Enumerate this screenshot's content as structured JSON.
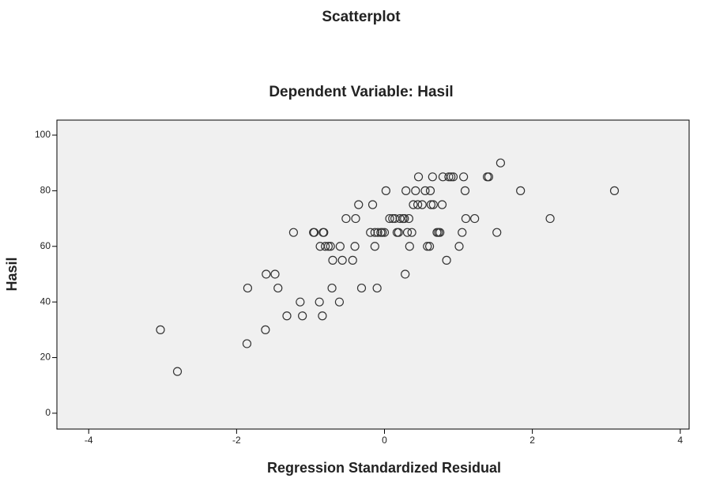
{
  "chart_data": {
    "type": "scatter",
    "title": "Scatterplot",
    "subtitle": "Dependent Variable: Hasil",
    "x_label": "Regression Standardized Residual",
    "y_label": "Hasil",
    "color": "#333333",
    "x": [
      -3.03,
      -2.8,
      -1.85,
      -1.86,
      -1.61,
      -1.6,
      -1.48,
      -1.44,
      -1.32,
      -1.23,
      -1.14,
      -1.11,
      -0.96,
      -0.95,
      -0.83,
      -0.82,
      -0.88,
      -0.87,
      -0.84,
      -0.8,
      -0.76,
      -0.73,
      -0.71,
      -0.7,
      -0.61,
      -0.6,
      -0.57,
      -0.52,
      -0.43,
      -0.4,
      -0.39,
      -0.35,
      -0.31,
      -0.19,
      -0.16,
      -0.13,
      -0.13,
      -0.1,
      -0.09,
      -0.05,
      -0.03,
      0.0,
      0.02,
      0.07,
      0.11,
      0.14,
      0.17,
      0.19,
      0.21,
      0.25,
      0.27,
      0.28,
      0.29,
      0.31,
      0.33,
      0.34,
      0.37,
      0.39,
      0.42,
      0.45,
      0.46,
      0.51,
      0.55,
      0.58,
      0.61,
      0.62,
      0.63,
      0.65,
      0.66,
      0.71,
      0.73,
      0.75,
      0.78,
      0.79,
      0.84,
      0.87,
      0.9,
      0.93,
      1.01,
      1.05,
      1.07,
      1.09,
      1.1,
      1.22,
      1.39,
      1.41,
      1.52,
      1.57,
      1.84,
      2.24,
      3.11
    ],
    "y": [
      30,
      15,
      45,
      25,
      30,
      50,
      50,
      45,
      35,
      65,
      40,
      35,
      65,
      65,
      65,
      65,
      40,
      60,
      35,
      60,
      60,
      60,
      45,
      55,
      40,
      60,
      55,
      70,
      55,
      60,
      70,
      75,
      45,
      65,
      75,
      60,
      65,
      45,
      65,
      65,
      65,
      65,
      80,
      70,
      70,
      70,
      65,
      65,
      70,
      70,
      70,
      50,
      80,
      65,
      70,
      60,
      65,
      75,
      80,
      75,
      85,
      75,
      80,
      60,
      60,
      80,
      75,
      85,
      75,
      65,
      65,
      65,
      75,
      85,
      55,
      85,
      85,
      85,
      60,
      65,
      85,
      80,
      70,
      70,
      85,
      85,
      65,
      90,
      80,
      70,
      80
    ],
    "xlim": [
      -4.43,
      4.12
    ],
    "ylim": [
      -5.7,
      105.4
    ],
    "xticks": [
      -4,
      -2,
      0,
      2,
      4
    ],
    "yticks": [
      0,
      20,
      40,
      60,
      80,
      100
    ]
  }
}
